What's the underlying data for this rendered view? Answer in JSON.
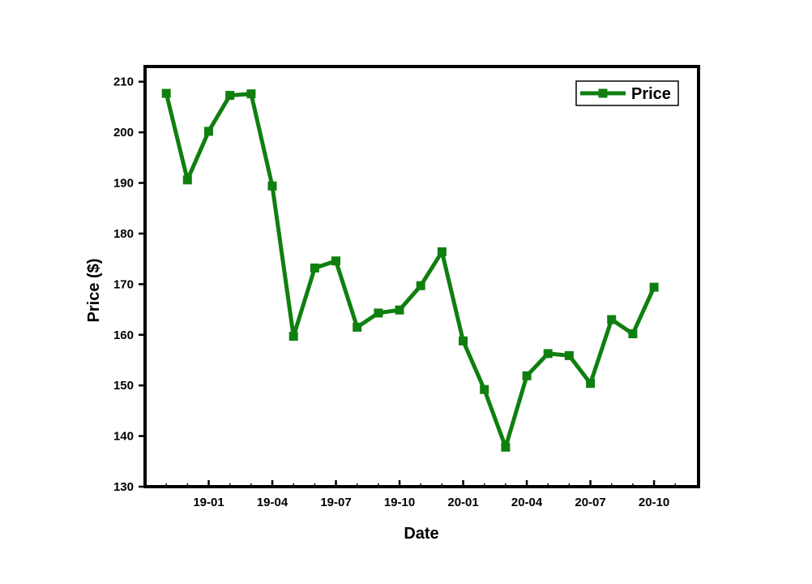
{
  "chart_data": {
    "type": "line",
    "xlabel": "Date",
    "ylabel": "Price ($)",
    "ylim": [
      130,
      213
    ],
    "yticks": [
      130,
      140,
      150,
      160,
      170,
      180,
      190,
      200,
      210
    ],
    "xticks": [
      "19-01",
      "19-04",
      "19-07",
      "19-10",
      "20-01",
      "20-04",
      "20-07",
      "20-10"
    ],
    "x_start": "2018-10",
    "grid": false,
    "legend": {
      "position": "top-right",
      "entries": [
        "Price"
      ]
    },
    "series": [
      {
        "name": "Price",
        "color": "#0f7f0f",
        "marker": "square",
        "x": [
          "2018-11",
          "2018-12",
          "2019-01",
          "2019-02",
          "2019-03",
          "2019-04",
          "2019-05",
          "2019-06",
          "2019-07",
          "2019-08",
          "2019-09",
          "2019-10",
          "2019-11",
          "2019-12",
          "2020-01",
          "2020-02",
          "2020-03",
          "2020-04",
          "2020-05",
          "2020-06",
          "2020-07",
          "2020-08",
          "2020-09",
          "2020-10"
        ],
        "values": [
          207.7,
          190.6,
          200.2,
          207.3,
          207.6,
          189.4,
          159.7,
          173.2,
          174.6,
          161.5,
          164.3,
          164.9,
          169.7,
          176.4,
          158.8,
          149.2,
          137.8,
          151.9,
          156.3,
          155.9,
          150.4,
          163.0,
          160.2,
          169.4
        ]
      }
    ]
  }
}
